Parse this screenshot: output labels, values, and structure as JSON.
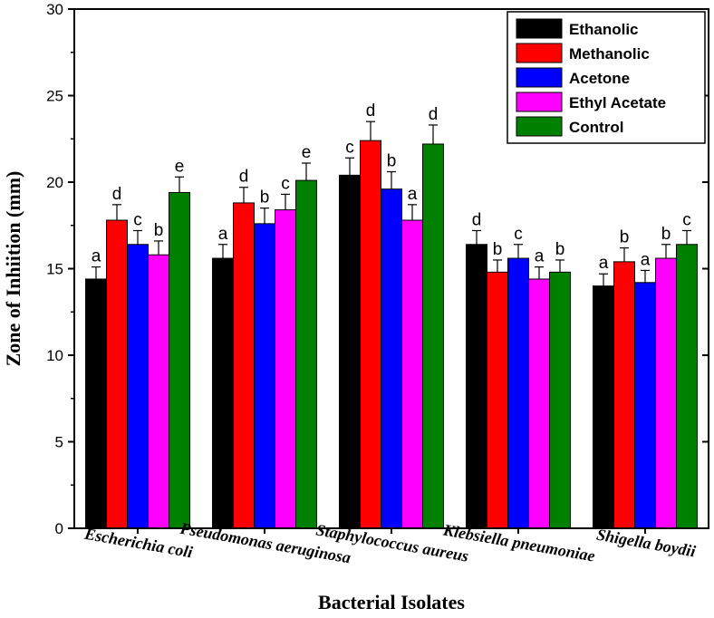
{
  "chart_data": {
    "type": "bar",
    "xlabel": "Bacterial Isolates",
    "ylabel": "Zone of Inhiition (mm)",
    "ylim": [
      0,
      30
    ],
    "yticks": [
      "0",
      "5",
      "10",
      "15",
      "20",
      "25",
      "30"
    ],
    "categories": [
      "Escherichia coli",
      "Pseudomonas aeruginosa",
      "Staphylococcus aureus",
      "Klebsiella pneumoniae",
      "Shigella boydii"
    ],
    "legend_position": "top-right",
    "series": [
      {
        "name": "Ethanolic",
        "color": "#000000",
        "values": [
          14.4,
          15.6,
          20.4,
          16.4,
          14.0
        ],
        "errors": [
          0.7,
          0.8,
          1.0,
          0.8,
          0.7
        ],
        "letters": [
          "a",
          "a",
          "c",
          "d",
          "a"
        ]
      },
      {
        "name": "Methanolic",
        "color": "#ff0000",
        "values": [
          17.8,
          18.8,
          22.4,
          14.8,
          15.4
        ],
        "errors": [
          0.9,
          0.9,
          1.1,
          0.7,
          0.8
        ],
        "letters": [
          "d",
          "d",
          "d",
          "b",
          "b"
        ]
      },
      {
        "name": "Acetone",
        "color": "#0000ff",
        "values": [
          16.4,
          17.6,
          19.6,
          15.6,
          14.2
        ],
        "errors": [
          0.8,
          0.9,
          1.0,
          0.8,
          0.7
        ],
        "letters": [
          "c",
          "b",
          "b",
          "c",
          "a"
        ]
      },
      {
        "name": "Ethyl Acetate",
        "color": "#ff00ff",
        "values": [
          15.8,
          18.4,
          17.8,
          14.4,
          15.6
        ],
        "errors": [
          0.8,
          0.9,
          0.9,
          0.7,
          0.8
        ],
        "letters": [
          "b",
          "c",
          "a",
          "a",
          "b"
        ]
      },
      {
        "name": "Control",
        "color": "#008000",
        "values": [
          19.4,
          20.1,
          22.2,
          14.8,
          16.4
        ],
        "errors": [
          0.9,
          1.0,
          1.1,
          0.7,
          0.8
        ],
        "letters": [
          "e",
          "e",
          "d",
          "b",
          "c"
        ]
      }
    ]
  }
}
